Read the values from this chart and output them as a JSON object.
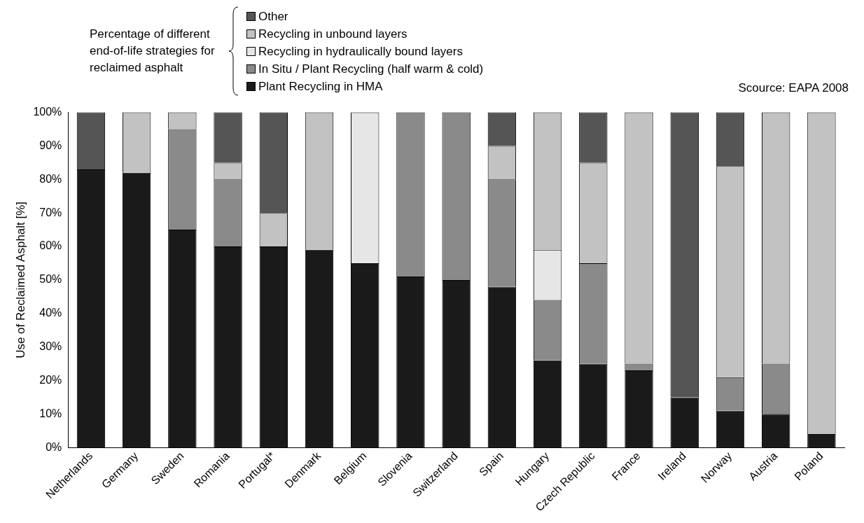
{
  "chart_data": {
    "type": "bar",
    "stacked": true,
    "ylabel": "Use of Reclaimed Asphalt [%]",
    "legend_title": "Percentage of different end-of-life strategies for reclaimed asphalt",
    "annotations": [
      "Scource: EAPA 2008"
    ],
    "legend": "top",
    "grid": false,
    "categories": [
      "Netherlands",
      "Germany",
      "Sweden",
      "Romania",
      "Portugal*",
      "Denmark",
      "Belgium",
      "Slovenia",
      "Switzerland",
      "Spain",
      "Hungary",
      "Czech Republic",
      "France",
      "Ireland",
      "Norway",
      "Austria",
      "Poland"
    ],
    "ylim": [
      0,
      100
    ],
    "yticks": [
      {
        "value": 0,
        "label": "0%"
      },
      {
        "value": 10,
        "label": "10%"
      },
      {
        "value": 20,
        "label": "20%"
      },
      {
        "value": 30,
        "label": "30%"
      },
      {
        "value": 40,
        "label": "40%"
      },
      {
        "value": 50,
        "label": "50%"
      },
      {
        "value": 60,
        "label": "60%"
      },
      {
        "value": 70,
        "label": "70%"
      },
      {
        "value": 80,
        "label": "80%"
      },
      {
        "value": 90,
        "label": "90%"
      },
      {
        "value": 100,
        "label": "100%"
      }
    ],
    "series": [
      {
        "name": "Plant Recycling in HMA",
        "color": "#1a1a1a",
        "values": [
          83,
          82,
          65,
          60,
          60,
          59,
          55,
          51,
          50,
          48,
          26,
          25,
          23,
          15,
          11,
          10,
          4
        ]
      },
      {
        "name": "In Situ / Plant Recycling (half warm & cold)",
        "color": "#8a8a8a",
        "values": [
          0,
          0,
          30,
          20,
          0,
          0,
          0,
          49,
          50,
          32,
          18,
          30,
          2,
          0,
          10,
          15,
          0
        ]
      },
      {
        "name": " Recycling in hydraulically bound layers",
        "color": "#e6e6e6",
        "values": [
          0,
          0,
          0,
          0,
          0,
          0,
          45,
          0,
          0,
          0,
          15,
          0,
          0,
          0,
          0,
          0,
          0
        ]
      },
      {
        "name": "Recycling in unbound layers",
        "color": "#c2c2c2",
        "values": [
          0,
          18,
          5,
          5,
          10,
          41,
          0,
          0,
          0,
          10,
          41,
          30,
          75,
          0,
          63,
          75,
          96
        ]
      },
      {
        "name": "Other",
        "color": "#555555",
        "values": [
          17,
          0,
          0,
          15,
          30,
          0,
          0,
          0,
          0,
          10,
          0,
          15,
          0,
          85,
          16,
          0,
          0
        ]
      }
    ]
  }
}
